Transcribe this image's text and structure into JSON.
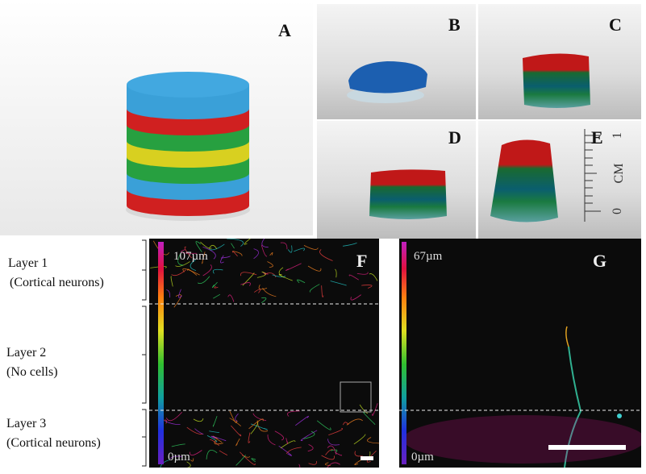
{
  "panel_labels": [
    "A",
    "B",
    "C",
    "D",
    "E",
    "F",
    "G"
  ],
  "layers": [
    {
      "name": "Layer 1",
      "desc": "(Cortical neurons)"
    },
    {
      "name": "Layer 2",
      "desc": "(No cells)"
    },
    {
      "name": "Layer 3",
      "desc": "(Cortical neurons)"
    }
  ],
  "depth_scale_f": {
    "top": "107µm",
    "bottom": "0µm"
  },
  "depth_scale_g": {
    "top": "67µm",
    "bottom": "0µm"
  },
  "ruler_labels": [
    "1",
    "CM",
    "0"
  ]
}
